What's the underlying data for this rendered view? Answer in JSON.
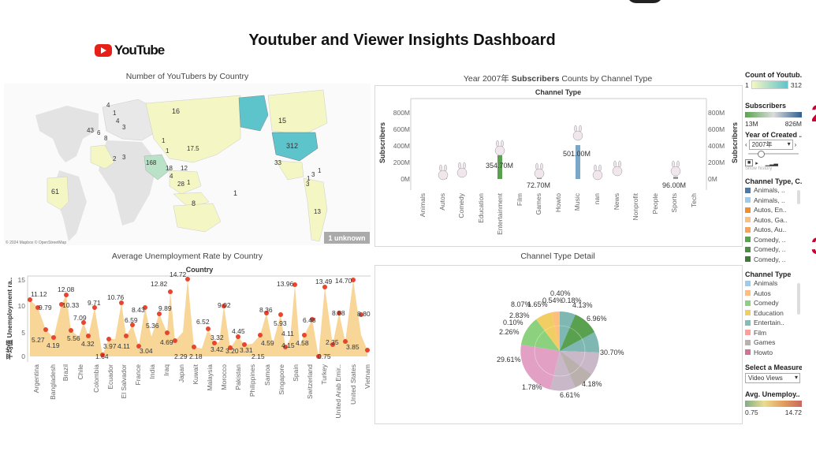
{
  "header": {
    "title": "Youtuber and Viewer Insights Dashboard",
    "logo_text": "YouTube"
  },
  "map": {
    "title": "Number of YouTubers by Country",
    "labels": [
      "16",
      "15",
      "312",
      "4",
      "1",
      "4",
      "3",
      "43",
      "6",
      "8",
      "2",
      "3",
      "168",
      "1",
      "17.5",
      "18",
      "12",
      "33",
      "4",
      "28",
      "1",
      "3",
      "3",
      "1",
      "61",
      "8",
      "1",
      "13",
      "1",
      "1"
    ],
    "copyright": "© 2024 Mapbox © OpenStreetMap",
    "unknown_badge": "1 unknown"
  },
  "bar": {
    "title_prefix": "Year 2007年",
    "title_bold": "Subscribers",
    "title_suffix": "Counts by Channel Type",
    "axis_title": "Channel Type",
    "ylabel": "Subscribers",
    "ylabel_right": "Subscribers",
    "ticks": [
      "800M",
      "600M",
      "400M",
      "200M",
      "0M"
    ],
    "ticks_right": [
      "800M",
      "600M",
      "400M",
      "200M",
      "0M"
    ],
    "data_labels": [
      "354.70M",
      "72.70M",
      "501.00M",
      "96.00M"
    ]
  },
  "line": {
    "title": "Average Unemployment Rate by Country",
    "axis_title": "Country",
    "ylabel": "平均值 Unemployment ra..",
    "ticks": [
      "15",
      "10",
      "5",
      "0"
    ],
    "value_labels": [
      "11.12",
      "9.79",
      "5.27",
      "4.19",
      "12.08",
      "10.33",
      "5.56",
      "7.09",
      "4.32",
      "9.71",
      "1.64",
      "3.97",
      "4.11",
      "10.76",
      "6.59",
      "3.04",
      "8.43",
      "5.36",
      "12.82",
      "9.89",
      "4.69",
      "14.72",
      "2.29",
      "2.18",
      "6.52",
      "3.32",
      "3.42",
      "9.02",
      "3.20",
      "4.45",
      "3.31",
      "2.15",
      "8.36",
      "4.59",
      "5.93",
      "13.96",
      "4.15",
      "4.11",
      "4.58",
      "6.48",
      "0.75",
      "13.49",
      "2.35",
      "8.88",
      "14.70",
      "3.85",
      "8.80"
    ]
  },
  "pie": {
    "title": "Channel Type Detail",
    "labels": [
      "0.40%",
      "8.07%",
      "1.65%",
      "0.54%",
      "0.18%",
      "4.13%",
      "2.83%",
      "0.10%",
      "6.96%",
      "2.26%",
      "30.70%",
      "29.61%",
      "4.18%",
      "1.78%",
      "6.61%"
    ]
  },
  "sidebar": {
    "count_title": "Count of Youtub..",
    "count_min": "1",
    "count_max": "312",
    "subs_title": "Subscribers",
    "subs_min": "13M",
    "subs_max": "826M",
    "year_title": "Year of Created ..",
    "year_value": "2007年",
    "show_history": "Show history",
    "ctc_title": "Channel Type, C..",
    "ctc_items": [
      {
        "label": "Animals, ..",
        "color": "#4e79a7"
      },
      {
        "label": "Animals, ..",
        "color": "#a0cbe8"
      },
      {
        "label": "Autos, En..",
        "color": "#f28e2b"
      },
      {
        "label": "Autos, Ga..",
        "color": "#ffbe7d"
      },
      {
        "label": "Autos, Au..",
        "color": "#f5a25c"
      },
      {
        "label": "Comedy, ..",
        "color": "#59a14f"
      },
      {
        "label": "Comedy, ..",
        "color": "#4a8f42"
      },
      {
        "label": "Comedy, ..",
        "color": "#3d7a36"
      }
    ],
    "ct_title": "Channel Type",
    "ct_items": [
      {
        "label": "Animals",
        "color": "#a0cbe8"
      },
      {
        "label": "Autos",
        "color": "#ffbe7d"
      },
      {
        "label": "Comedy",
        "color": "#8cd17d"
      },
      {
        "label": "Education",
        "color": "#f1ce63"
      },
      {
        "label": "Entertain..",
        "color": "#86bcb6"
      },
      {
        "label": "Film",
        "color": "#ff9d9a"
      },
      {
        "label": "Games",
        "color": "#bab0ac"
      },
      {
        "label": "Howto",
        "color": "#d37295"
      }
    ],
    "measure_title": "Select a Measure",
    "measure_value": "Video Views",
    "unemp_title": "Avg. Unemploy..",
    "unemp_min": "0.75",
    "unemp_max": "14.72"
  },
  "side_marks": [
    "2",
    "3"
  ]
}
